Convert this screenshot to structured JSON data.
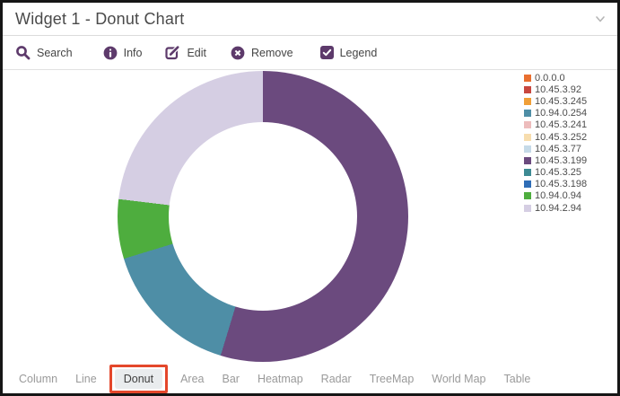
{
  "window": {
    "title": "Widget 1 - Donut Chart"
  },
  "toolbar": {
    "search_label": "Search",
    "info_label": "Info",
    "edit_label": "Edit",
    "remove_label": "Remove",
    "legend_label": "Legend",
    "legend_checked": true
  },
  "chart_data": {
    "type": "donut",
    "title": "Widget 1 - Donut Chart",
    "legend_position": "top-right",
    "hole_ratio": 0.65,
    "start_angle_deg": 0,
    "legend": [
      {
        "name": "0.0.0.0",
        "color": "#e96f2f"
      },
      {
        "name": "10.45.3.92",
        "color": "#c8473f"
      },
      {
        "name": "10.45.3.245",
        "color": "#f09f38"
      },
      {
        "name": "10.94.0.254",
        "color": "#4e8ea6"
      },
      {
        "name": "10.45.3.241",
        "color": "#edbcbc"
      },
      {
        "name": "10.45.3.252",
        "color": "#f7ddae"
      },
      {
        "name": "10.45.3.77",
        "color": "#c5dae8"
      },
      {
        "name": "10.45.3.199",
        "color": "#6b4a7e"
      },
      {
        "name": "10.45.3.25",
        "color": "#3d8a93"
      },
      {
        "name": "10.45.3.198",
        "color": "#2f6db6"
      },
      {
        "name": "10.94.0.94",
        "color": "#4ead3e"
      },
      {
        "name": "10.94.2.94",
        "color": "#d5cee3"
      }
    ],
    "segments_clockwise_from_top": [
      {
        "name": "10.45.3.199",
        "value_pct": 54.7
      },
      {
        "name": "10.94.0.254",
        "value_pct": 15.6
      },
      {
        "name": "10.94.0.94",
        "value_pct": 6.6
      },
      {
        "name": "10.94.2.94",
        "value_pct": 23.1
      }
    ]
  },
  "tabs": {
    "items": [
      "Column",
      "Line",
      "Donut",
      "Area",
      "Bar",
      "Heatmap",
      "Radar",
      "TreeMap",
      "World Map",
      "Table"
    ],
    "active": "Donut",
    "active_highlight_color": "#e4472b"
  },
  "theme": {
    "accent_purple": "#5d3a6b",
    "title_color": "#4a4a4a",
    "tab_text_color": "#9a9a9a",
    "window_border_color": "#161616"
  }
}
